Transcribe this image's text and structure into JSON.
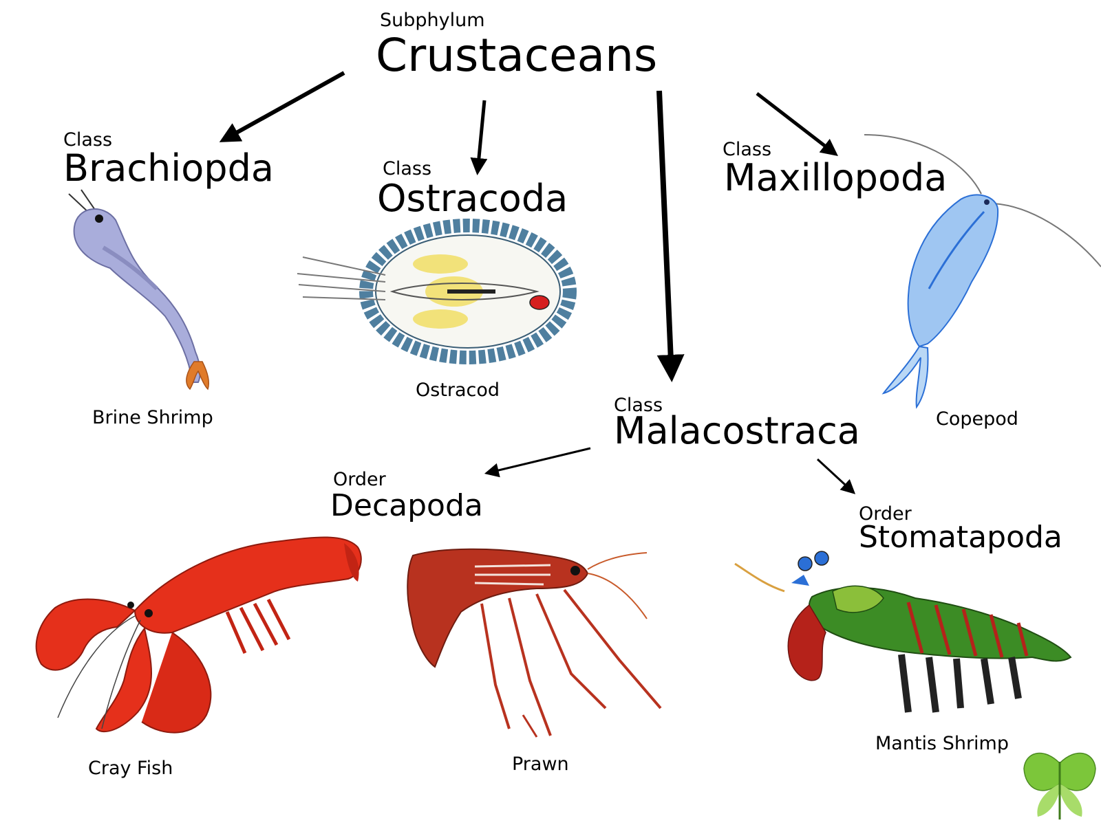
{
  "root": {
    "rank": "Subphylum",
    "name": "Crustaceans"
  },
  "classes": [
    {
      "rank": "Class",
      "name": "Brachiopda",
      "organism": "Brine Shrimp"
    },
    {
      "rank": "Class",
      "name": "Ostracoda",
      "organism": "Ostracod"
    },
    {
      "rank": "Class",
      "name": "Maxillopoda",
      "organism": "Copepod"
    },
    {
      "rank": "Class",
      "name": "Malacostraca"
    }
  ],
  "orders": [
    {
      "rank": "Order",
      "name": "Decapoda",
      "organisms": [
        "Cray Fish",
        "Prawn"
      ]
    },
    {
      "rank": "Order",
      "name": "Stomatapoda",
      "organisms": [
        "Mantis Shrimp"
      ]
    }
  ],
  "colors": {
    "brine_shrimp": "#a9addb",
    "brine_shrimp_tail": "#e07b2a",
    "ostracod_shell": "#4f7f9f",
    "ostracod_yellow": "#f2e27a",
    "ostracod_eye": "#d61f1f",
    "copepod": "#9fc6f2",
    "copepod_accent": "#2b6fd6",
    "crayfish": "#e5301b",
    "prawn": "#b8321f",
    "mantis_green": "#3c8c25",
    "mantis_red": "#b5221a",
    "logo_green": "#7cc63a"
  },
  "icons": {
    "brine_shrimp": "brine-shrimp-illustration",
    "ostracod": "ostracod-illustration",
    "copepod": "copepod-illustration",
    "crayfish": "crayfish-illustration",
    "prawn": "prawn-illustration",
    "mantis_shrimp": "mantis-shrimp-illustration",
    "logo": "butterfly-logo-icon"
  }
}
